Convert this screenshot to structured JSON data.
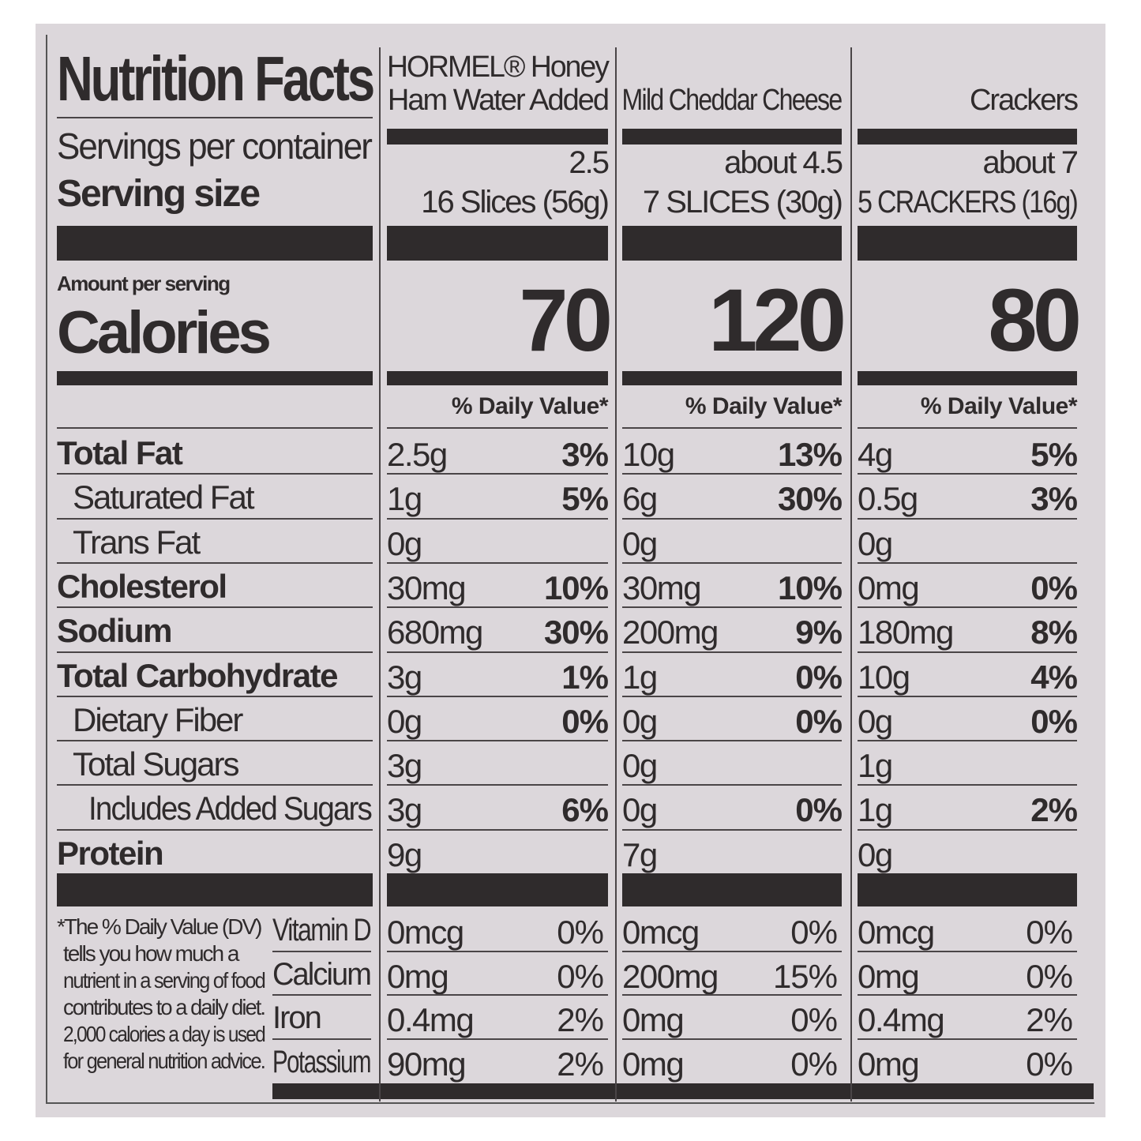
{
  "header": {
    "title": "Nutrition Facts",
    "servings_label": "Servings per container",
    "serving_size_label": "Serving size",
    "amount_per_serving": "Amount per serving",
    "calories_label": "Calories"
  },
  "nutrient_labels": [
    {
      "label": "Total Fat",
      "bold": true,
      "indent": 0
    },
    {
      "label": "Saturated Fat",
      "bold": false,
      "indent": 1
    },
    {
      "label": "Trans Fat",
      "bold": false,
      "indent": 1
    },
    {
      "label": "Cholesterol",
      "bold": true,
      "indent": 0
    },
    {
      "label": "Sodium",
      "bold": true,
      "indent": 0
    },
    {
      "label": "Total Carbohydrate",
      "bold": true,
      "indent": 0
    },
    {
      "label": "Dietary Fiber",
      "bold": false,
      "indent": 1
    },
    {
      "label": "Total Sugars",
      "bold": false,
      "indent": 1
    },
    {
      "label": "Includes Added Sugars",
      "bold": false,
      "indent": 2
    },
    {
      "label": "Protein",
      "bold": true,
      "indent": 0
    }
  ],
  "vitamin_labels": [
    "Vitamin D",
    "Calcium",
    "Iron",
    "Potassium"
  ],
  "footnote_lines": [
    "*The % Daily Value (DV)",
    "tells you how much a",
    "nutrient in a serving of food",
    "contributes to a daily diet.",
    "2,000 calories a day is used",
    "for general nutrition advice."
  ],
  "products": [
    {
      "name_lines": [
        "HORMEL® Honey",
        "Ham Water Added"
      ],
      "servings": "2.5",
      "serving_size": "16 Slices (56g)",
      "calories": "70",
      "dv_header": "% Daily Value*",
      "nutrients": [
        {
          "amount": "2.5g",
          "dv": "3%"
        },
        {
          "amount": "1g",
          "dv": "5%"
        },
        {
          "amount": "0g",
          "dv": ""
        },
        {
          "amount": "30mg",
          "dv": "10%"
        },
        {
          "amount": "680mg",
          "dv": "30%"
        },
        {
          "amount": "3g",
          "dv": "1%"
        },
        {
          "amount": "0g",
          "dv": "0%"
        },
        {
          "amount": "3g",
          "dv": ""
        },
        {
          "amount": "3g",
          "dv": "6%"
        },
        {
          "amount": "9g",
          "dv": ""
        }
      ],
      "vitamins": [
        {
          "amount": "0mcg",
          "dv": "0%"
        },
        {
          "amount": "0mg",
          "dv": "0%"
        },
        {
          "amount": "0.4mg",
          "dv": "2%"
        },
        {
          "amount": "90mg",
          "dv": "2%"
        }
      ]
    },
    {
      "name_lines": [
        "Mild Cheddar Cheese"
      ],
      "servings": "about 4.5",
      "serving_size": "7 SLICES (30g)",
      "calories": "120",
      "dv_header": "% Daily Value*",
      "nutrients": [
        {
          "amount": "10g",
          "dv": "13%"
        },
        {
          "amount": "6g",
          "dv": "30%"
        },
        {
          "amount": "0g",
          "dv": ""
        },
        {
          "amount": "30mg",
          "dv": "10%"
        },
        {
          "amount": "200mg",
          "dv": "9%"
        },
        {
          "amount": "1g",
          "dv": "0%"
        },
        {
          "amount": "0g",
          "dv": "0%"
        },
        {
          "amount": "0g",
          "dv": ""
        },
        {
          "amount": "0g",
          "dv": "0%"
        },
        {
          "amount": "7g",
          "dv": ""
        }
      ],
      "vitamins": [
        {
          "amount": "0mcg",
          "dv": "0%"
        },
        {
          "amount": "200mg",
          "dv": "15%"
        },
        {
          "amount": "0mg",
          "dv": "0%"
        },
        {
          "amount": "0mg",
          "dv": "0%"
        }
      ]
    },
    {
      "name_lines": [
        "Crackers"
      ],
      "servings": "about 7",
      "serving_size": "5 CRACKERS (16g)",
      "calories": "80",
      "dv_header": "% Daily Value*",
      "nutrients": [
        {
          "amount": "4g",
          "dv": "5%"
        },
        {
          "amount": "0.5g",
          "dv": "3%"
        },
        {
          "amount": "0g",
          "dv": ""
        },
        {
          "amount": "0mg",
          "dv": "0%"
        },
        {
          "amount": "180mg",
          "dv": "8%"
        },
        {
          "amount": "10g",
          "dv": "4%"
        },
        {
          "amount": "0g",
          "dv": "0%"
        },
        {
          "amount": "1g",
          "dv": ""
        },
        {
          "amount": "1g",
          "dv": "2%"
        },
        {
          "amount": "0g",
          "dv": ""
        }
      ],
      "vitamins": [
        {
          "amount": "0mcg",
          "dv": "0%"
        },
        {
          "amount": "0mg",
          "dv": "0%"
        },
        {
          "amount": "0.4mg",
          "dv": "2%"
        },
        {
          "amount": "0mg",
          "dv": "0%"
        }
      ]
    }
  ]
}
